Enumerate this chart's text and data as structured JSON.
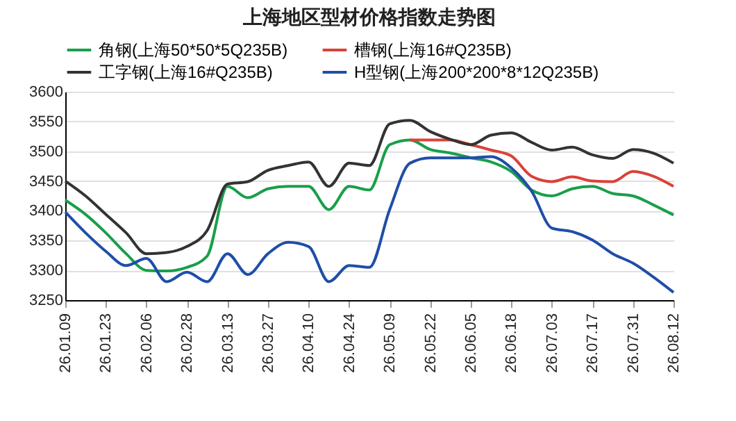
{
  "chart_data": {
    "type": "line",
    "title": "上海地区型材价格指数走势图",
    "categories": [
      "26.01.09",
      null,
      "26.01.23",
      null,
      "26.02.06",
      null,
      "26.02.28",
      null,
      "26.03.13",
      null,
      "26.03.27",
      null,
      "26.04.10",
      null,
      "26.04.24",
      null,
      "26.05.09",
      null,
      "26.05.22",
      null,
      "26.06.05",
      null,
      "26.06.18",
      null,
      "26.07.03",
      null,
      "26.07.17",
      null,
      "26.07.31",
      null,
      "26.08.12"
    ],
    "series": [
      {
        "name": "角钢(上海50*50*5Q235B)",
        "color": "#1a9e4a",
        "values": [
          3418,
          3394,
          3363,
          3328,
          3300,
          3299,
          3305,
          3324,
          3441,
          3422,
          3437,
          3441,
          3441,
          3402,
          3441,
          3435,
          3511,
          3519,
          3503,
          3497,
          3489,
          3482,
          3466,
          3435,
          3425,
          3437,
          3441,
          3429,
          3425,
          3410,
          3393
        ]
      },
      {
        "name": "槽钢(上海16#Q235B)",
        "color": "#d9423a",
        "values": [
          null,
          null,
          null,
          null,
          null,
          null,
          null,
          null,
          null,
          null,
          null,
          null,
          null,
          null,
          null,
          null,
          null,
          3519,
          3519,
          3519,
          3511,
          3502,
          3492,
          3458,
          3449,
          3457,
          3450,
          3449,
          3466,
          3458,
          3441
        ]
      },
      {
        "name": "工字钢(上海16#Q235B)",
        "color": "#333333",
        "values": [
          3450,
          3425,
          3394,
          3363,
          3328,
          3330,
          3340,
          3367,
          3445,
          3449,
          3468,
          3476,
          3482,
          3441,
          3480,
          3476,
          3546,
          3552,
          3533,
          3520,
          3511,
          3527,
          3531,
          3515,
          3502,
          3507,
          3494,
          3488,
          3503,
          3497,
          3480
        ]
      },
      {
        "name": "H型钢(上海200*200*8*12Q235B)",
        "color": "#1f4ea8",
        "values": [
          3398,
          3363,
          3332,
          3308,
          3320,
          3281,
          3297,
          3281,
          3328,
          3293,
          3328,
          3347,
          3340,
          3281,
          3308,
          3305,
          3402,
          3480,
          3489,
          3489,
          3489,
          3491,
          3472,
          3433,
          3371,
          3365,
          3351,
          3328,
          3312,
          3289,
          3263
        ]
      }
    ],
    "ylim": [
      3250,
      3600
    ],
    "yticks": [
      3250,
      3300,
      3350,
      3400,
      3450,
      3500,
      3550,
      3600
    ],
    "grid": "y",
    "legend": "top"
  }
}
